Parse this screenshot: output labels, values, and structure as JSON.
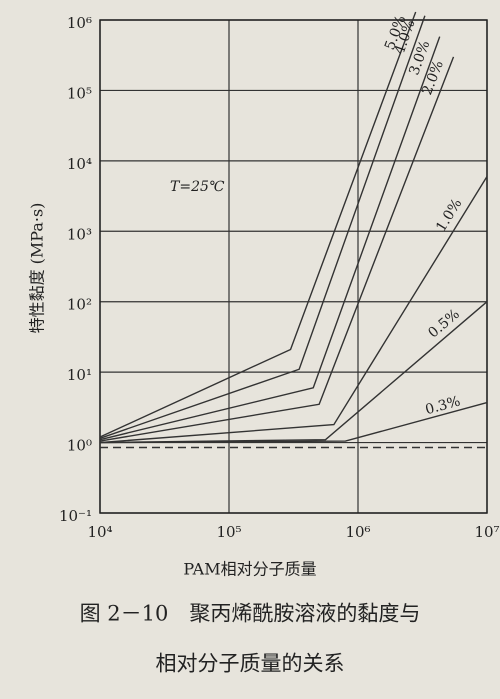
{
  "chart_data": {
    "type": "line",
    "xlabel": "PAM相对分子质量",
    "ylabel": "特性黏度 (MPa·s)",
    "annotation": "T=25℃",
    "caption": [
      "图 2－10　聚丙烯酰胺溶液的黏度与",
      "相对分子质量的关系"
    ],
    "xscale": "log",
    "yscale": "log",
    "grid": true,
    "xlim": [
      10000,
      10000000
    ],
    "ylim": [
      0.1,
      1000000
    ],
    "xticks": [
      {
        "value": 10000,
        "label": "10⁴"
      },
      {
        "value": 100000,
        "label": "10⁵"
      },
      {
        "value": 1000000,
        "label": "10⁶"
      },
      {
        "value": 10000000,
        "label": "10⁷"
      }
    ],
    "yticks": [
      {
        "value": 0.1,
        "label": "10⁻¹"
      },
      {
        "value": 1,
        "label": "10⁰"
      },
      {
        "value": 10,
        "label": "10¹"
      },
      {
        "value": 100,
        "label": "10²"
      },
      {
        "value": 1000,
        "label": "10³"
      },
      {
        "value": 10000,
        "label": "10⁴"
      },
      {
        "value": 100000,
        "label": "10⁵"
      },
      {
        "value": 1000000,
        "label": "10⁶"
      }
    ],
    "series": [
      {
        "name": "5.0%",
        "color": "#333333",
        "x": [
          10000,
          300000,
          2800000
        ],
        "values": [
          1.2,
          21,
          1300000
        ]
      },
      {
        "name": "4.0%",
        "color": "#333333",
        "x": [
          10000,
          350000,
          3300000
        ],
        "values": [
          1.15,
          11,
          1150000
        ]
      },
      {
        "name": "3.0%",
        "color": "#333333",
        "x": [
          10000,
          450000,
          4300000
        ],
        "values": [
          1.1,
          6,
          580000
        ]
      },
      {
        "name": "2.0%",
        "color": "#333333",
        "x": [
          10000,
          500000,
          5500000
        ],
        "values": [
          1.05,
          3.5,
          300000
        ]
      },
      {
        "name": "1.0%",
        "color": "#333333",
        "x": [
          10000,
          650000,
          10000000
        ],
        "values": [
          1.0,
          1.8,
          6000
        ]
      },
      {
        "name": "0.5%",
        "color": "#333333",
        "x": [
          10000,
          560000,
          10000000
        ],
        "values": [
          1.0,
          1.1,
          100
        ]
      },
      {
        "name": "0.3%",
        "color": "#333333",
        "x": [
          10000,
          800000,
          10000000
        ],
        "values": [
          1.0,
          1.05,
          3.7
        ]
      }
    ],
    "reference_line": {
      "x": [
        10000,
        10000000
      ],
      "values": [
        0.85,
        0.85
      ],
      "color": "#333333",
      "dashed": true
    }
  }
}
